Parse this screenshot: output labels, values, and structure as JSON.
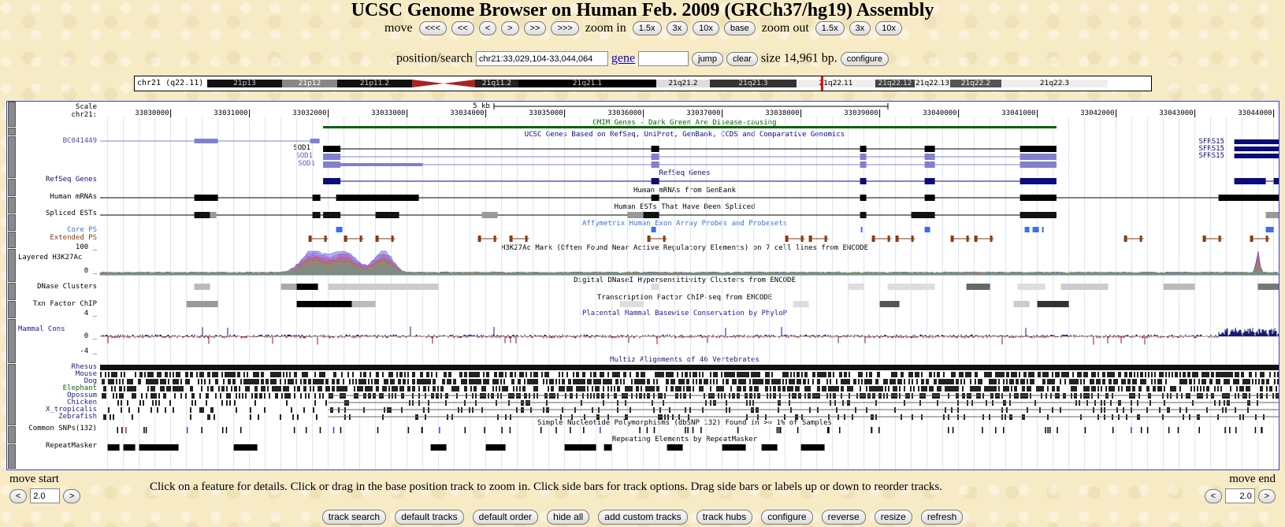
{
  "header": {
    "title": "UCSC Genome Browser on Human Feb. 2009 (GRCh37/hg19) Assembly"
  },
  "nav": {
    "move_label": "move",
    "zoom_in_label": "zoom in",
    "zoom_out_label": "zoom out",
    "move_buttons": [
      "<<<",
      "<<",
      "<",
      ">",
      ">>",
      ">>>"
    ],
    "zoom_in_buttons": [
      "1.5x",
      "3x",
      "10x",
      "base"
    ],
    "zoom_out_buttons": [
      "1.5x",
      "3x",
      "10x"
    ]
  },
  "position": {
    "label": "position/search",
    "value": "chr21:33,029,104-33,044,064",
    "gene_link": "gene",
    "gene_value": "",
    "jump": "jump",
    "clear": "clear",
    "size_text": "size 14,961 bp.",
    "configure": "configure"
  },
  "ideogram": {
    "label": "chr21 (q22.11)",
    "bands": [
      "21p13",
      "21p12",
      "21p11.2",
      "21p11.1",
      "21q11.2",
      "21q21.1",
      "21q21.2",
      "21q21.3",
      "21q22.11",
      "21q22.12",
      "21q22.13",
      "21q22.2",
      "21q22.3"
    ]
  },
  "ruler": {
    "scale_label": "Scale",
    "chrom_label": "chr21:",
    "scale_bar": "5 kb",
    "ticks": [
      "33030000",
      "33031000",
      "33032000",
      "33033000",
      "33034000",
      "33035000",
      "33036000",
      "33037000",
      "33038000",
      "33039000",
      "33040000",
      "33041000",
      "33042000",
      "33043000",
      "33044000"
    ]
  },
  "tracks": {
    "omim": "OMIM Genes - Dark Green Are Disease-causing",
    "ucsc_genes": "UCSC Genes Based on RefSeq, UniProt, GenBank, CCDS and Comparative Genomics",
    "refseq": "RefSeq Genes",
    "mrna": "Human mRNAs from GenBank",
    "ests": "Human ESTs That Have Been Spliced",
    "affy": "Affymetrix Human Exon Array Probes and Probesets",
    "h3k27ac": "H3K27Ac Mark (Often Found Near Active Regulatory Elements) on 7 cell lines from ENCODE",
    "dnase": "Digital DNaseI Hypersensitivity Clusters from ENCODE",
    "tfbs": "Transcription Factor ChIP-seq from ENCODE",
    "phylop": "Placental Mammal Basewise Conservation by PhyloP",
    "multiz": "Multiz Alignments of 46 Vertebrates",
    "snp": "Simple Nucleotide Polymorphisms (dbSNP 132) Found in >= 1% of Samples",
    "rmsk": "Repeating Elements by RepeatMasker"
  },
  "left_labels": {
    "bc": "BC041449",
    "sod1_a": "SOD1",
    "sod1_b": "SOD1",
    "sod1_c": "SOD1",
    "refseq": "RefSeq Genes",
    "mrna": "Human mRNAs",
    "ests": "Spliced ESTs",
    "core": "Core PS",
    "extended": "Extended PS",
    "h3_max": "100 _",
    "h3_name": "Layered H3K27Ac",
    "h3_min": "0 _",
    "dnase": "DNase Clusters",
    "tfbs": "Txn Factor ChIP",
    "cons_max": "4 _",
    "cons_name": "Mammal Cons",
    "cons_zero": "0 _",
    "cons_min": "-4 _",
    "species": [
      "Rhesus",
      "Mouse",
      "Dog",
      "Elephant",
      "Opossum",
      "Chicken",
      "X_tropicalis",
      "Zebrafish"
    ],
    "snp": "Common SNPs(132)",
    "rmsk": "RepeatMasker"
  },
  "right_labels": [
    "SFRS15",
    "SFRS15",
    "SFRS15"
  ],
  "move_start": {
    "label": "move start",
    "value": "2.0",
    "left": "<",
    "right": ">"
  },
  "move_end": {
    "label": "move end",
    "value": "2.0",
    "left": "<",
    "right": ">"
  },
  "hint": "Click on a feature for details. Click or drag in the base position track to zoom in. Click side bars for track options. Drag side bars or labels up or down to reorder tracks.",
  "bottom_buttons": [
    "track search",
    "default tracks",
    "default order",
    "hide all",
    "add custom tracks",
    "track hubs",
    "configure",
    "reverse",
    "resize",
    "refresh"
  ],
  "colors": {
    "omim": "#006400",
    "ucsc_genes": "#0a0a78",
    "refseq": "#0c0c78",
    "core_ps": "#3f6ee8",
    "extended_ps": "#8b3a0f",
    "phylop_pos": "#1a1a6e",
    "phylop_neg": "#8b1a1a"
  }
}
